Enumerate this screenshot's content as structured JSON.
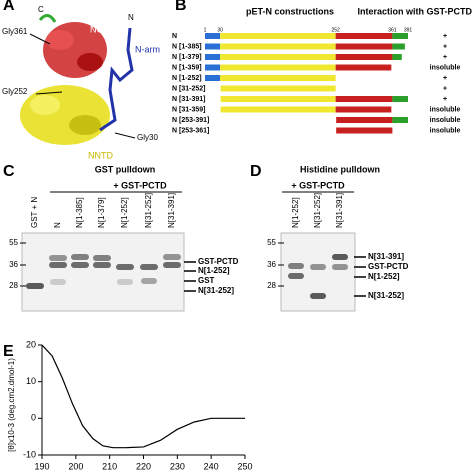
{
  "panel_a": {
    "letter": "A",
    "labels": [
      "C",
      "Gly361",
      "NCTD",
      "N",
      "N-arm",
      "Gly252",
      "Gly30",
      "NNTD"
    ]
  },
  "panel_b": {
    "letter": "B",
    "title": "pET-N constructions",
    "interaction_title": "Interaction with GST-PCTD",
    "header": {
      "name": "N",
      "positions": [
        1,
        30,
        252,
        361,
        391
      ]
    },
    "rows": [
      {
        "name": "N",
        "range": [
          1,
          391
        ],
        "interaction": "+"
      },
      {
        "name": "N [1-385]",
        "range": [
          1,
          385
        ],
        "interaction": "+"
      },
      {
        "name": "N [1-379]",
        "range": [
          1,
          379
        ],
        "interaction": "+"
      },
      {
        "name": "N [1-359]",
        "range": [
          1,
          359
        ],
        "interaction": "insoluble"
      },
      {
        "name": "N [1-252]",
        "range": [
          1,
          252
        ],
        "interaction": "+"
      },
      {
        "name": "N [31-252]",
        "range": [
          31,
          252
        ],
        "interaction": "+"
      },
      {
        "name": "N [31-391]",
        "range": [
          31,
          391
        ],
        "interaction": "+"
      },
      {
        "name": "N [31-359]",
        "range": [
          31,
          359
        ],
        "interaction": "insoluble"
      },
      {
        "name": "N [253-391]",
        "range": [
          253,
          391
        ],
        "interaction": "insoluble"
      },
      {
        "name": "N [253-361]",
        "range": [
          253,
          361
        ],
        "interaction": "insoluble"
      }
    ]
  },
  "panel_c": {
    "letter": "C",
    "title": "GST pulldown",
    "group": "+ GST-PCTD",
    "lanes": [
      "GST + N",
      "N",
      "N[1-385]",
      "N[1-379]",
      "N[1-252]",
      "N[31-252]",
      "N[31-391]"
    ],
    "markers": [
      "55",
      "36",
      "28"
    ],
    "bands": [
      "GST-PCTD",
      "N[1-252]",
      "GST",
      "N[31-252]"
    ]
  },
  "panel_d": {
    "letter": "D",
    "title": "Histidine pulldown",
    "group": "+ GST-PCTD",
    "lanes": [
      "N[1-252]",
      "N[31-252]",
      "N[31-391]"
    ],
    "markers": [
      "55",
      "36",
      "28"
    ],
    "bands": [
      "N[31-391]",
      "GST-PCTD",
      "N[1-252]",
      "N[31-252]"
    ]
  },
  "chart_data": {
    "type": "line",
    "letter": "E",
    "ylabel": "[θ]x10-3 (deg.cm2.dmol-1)",
    "x": [
      190,
      193,
      196,
      199,
      202,
      205,
      208,
      211,
      215,
      220,
      225,
      230,
      235,
      240,
      245,
      250
    ],
    "values": [
      20,
      17,
      11,
      4,
      -2,
      -5.5,
      -7.5,
      -8,
      -8,
      -7.8,
      -6,
      -3,
      -1,
      0,
      0,
      0
    ],
    "color": "#000000",
    "xlim": [
      190,
      250
    ],
    "ylim": [
      -10,
      20
    ],
    "xticks": [
      190,
      200,
      210,
      220,
      230,
      240,
      250
    ],
    "yticks": [
      -10,
      0,
      10,
      20
    ]
  }
}
